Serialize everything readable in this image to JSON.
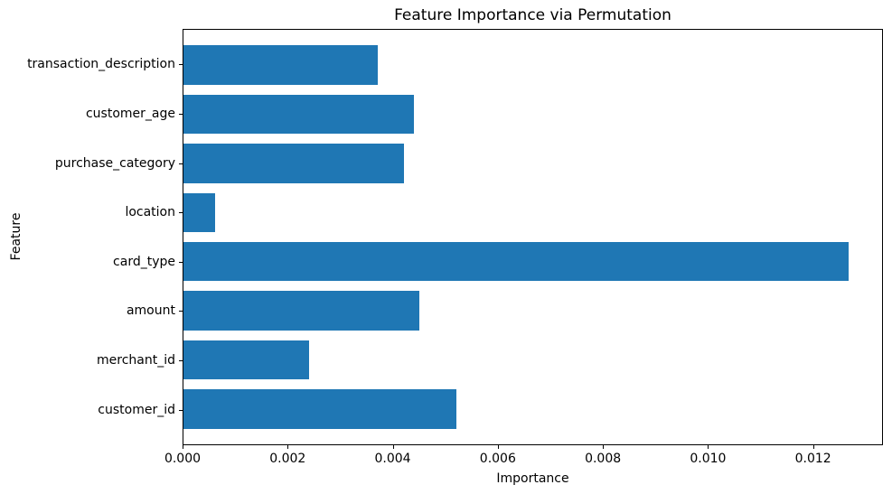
{
  "chart_data": {
    "type": "bar",
    "orientation": "horizontal",
    "title": "Feature Importance via Permutation",
    "xlabel": "Importance",
    "ylabel": "Feature",
    "categories": [
      "transaction_description",
      "customer_age",
      "purchase_category",
      "location",
      "card_type",
      "amount",
      "merchant_id",
      "customer_id"
    ],
    "values": [
      0.0037,
      0.0044,
      0.0042,
      0.0006,
      0.0127,
      0.0045,
      0.0024,
      0.0052
    ],
    "xticks": [
      "0.000",
      "0.002",
      "0.004",
      "0.006",
      "0.008",
      "0.010",
      "0.012"
    ],
    "xlim": [
      0,
      0.01333
    ],
    "bar_color": "#1f77b4",
    "grid": false,
    "legend_position": "none"
  }
}
